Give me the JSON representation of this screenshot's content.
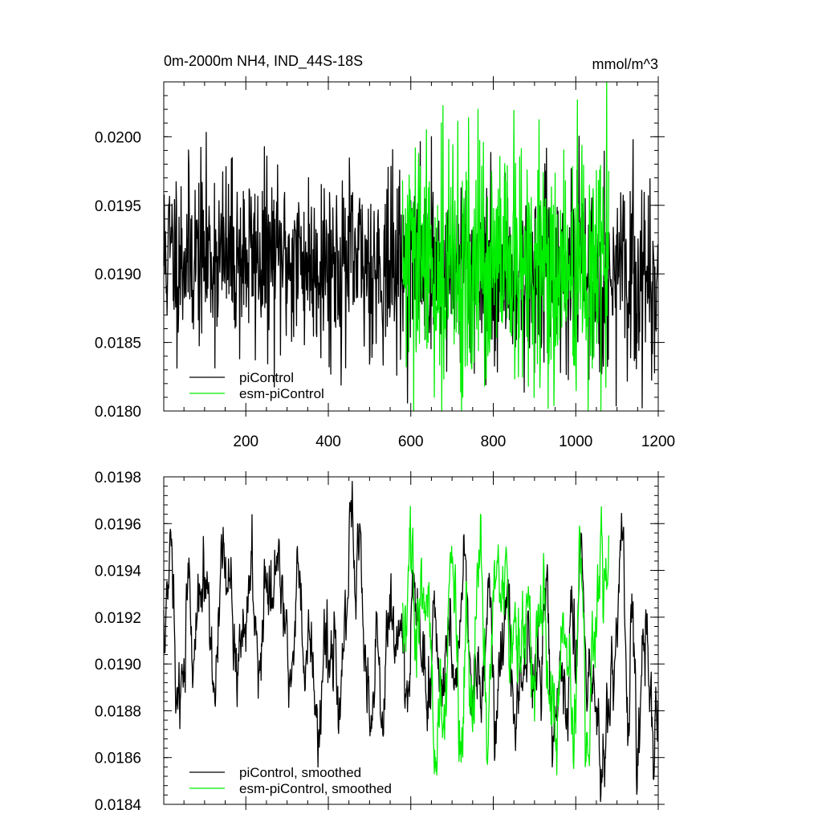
{
  "chart_data": [
    {
      "type": "line",
      "title_left": "0m-2000m NH4, IND_44S-18S",
      "title_right": "mmol/m^3",
      "xlim": [
        1,
        1200
      ],
      "ylim": [
        0.018,
        0.0204
      ],
      "x_ticks": [
        200,
        400,
        600,
        800,
        1000,
        1200
      ],
      "x_tick_labels": [
        "200",
        "400",
        "600",
        "800",
        "1000",
        "1200"
      ],
      "y_ticks": [
        0.018,
        0.0185,
        0.019,
        0.0195,
        0.02
      ],
      "y_tick_labels": [
        "0.0180",
        "0.0185",
        "0.0190",
        "0.0195",
        "0.0200"
      ],
      "legend_position": "bottom-left",
      "series": [
        {
          "name": "piControl",
          "color": "#000000",
          "x_range": [
            1,
            1200
          ],
          "mean": 0.01915,
          "trend_end_mean": 0.01895,
          "noise": 0.00033,
          "seed": 11
        },
        {
          "name": "esm-piControl",
          "color": "#00ee00",
          "x_range": [
            580,
            1080
          ],
          "mean": 0.01905,
          "trend_end_mean": 0.01898,
          "noise": 0.00045,
          "seed": 29
        }
      ]
    },
    {
      "type": "line",
      "xlim": [
        1,
        1200
      ],
      "ylim": [
        0.0184,
        0.0198
      ],
      "x_ticks": [
        200,
        400,
        600,
        800,
        1000,
        1200
      ],
      "y_ticks": [
        0.0184,
        0.0186,
        0.0188,
        0.019,
        0.0192,
        0.0194,
        0.0196,
        0.0198
      ],
      "y_tick_labels": [
        "0.0184",
        "0.0186",
        "0.0188",
        "0.0190",
        "0.0192",
        "0.0194",
        "0.0196",
        "0.0198"
      ],
      "legend_position": "bottom-left",
      "series": [
        {
          "name": "piControl, smoothed",
          "color": "#000000",
          "x_range": [
            1,
            1200
          ],
          "mean": 0.01925,
          "trend_end_mean": 0.01895,
          "noise": 0.00022,
          "seed": 11
        },
        {
          "name": "esm-piControl, smoothed",
          "color": "#00ee00",
          "x_range": [
            580,
            1080
          ],
          "mean": 0.01905,
          "trend_end_mean": 0.01895,
          "noise": 0.00028,
          "seed": 29
        }
      ]
    }
  ]
}
